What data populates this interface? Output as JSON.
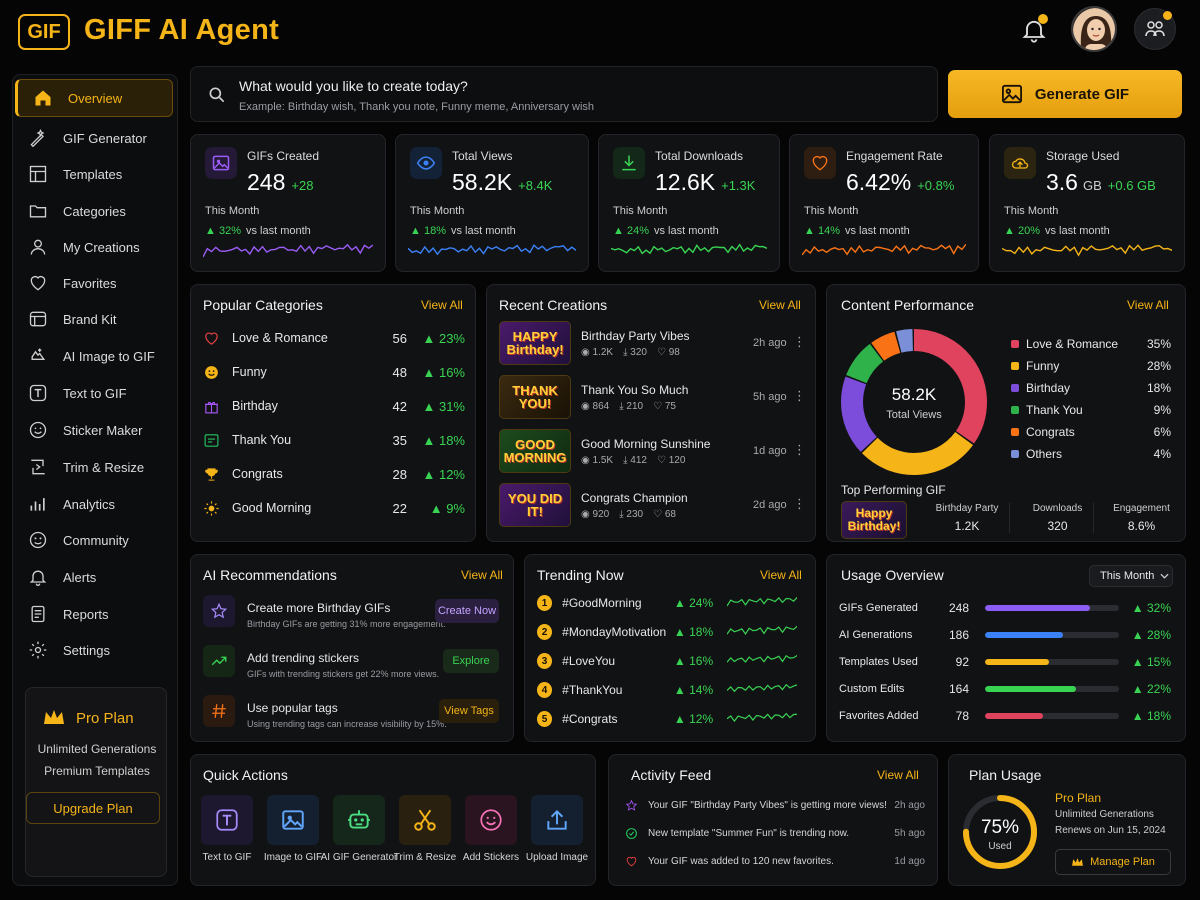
{
  "app": {
    "logo": "GIF",
    "title": "GIFF AI Agent"
  },
  "sidebar": {
    "items": [
      {
        "label": "Overview",
        "icon": "home-icon"
      },
      {
        "label": "GIF Generator",
        "icon": "magic-icon"
      },
      {
        "label": "Templates",
        "icon": "templates-icon"
      },
      {
        "label": "Categories",
        "icon": "folder-icon"
      },
      {
        "label": "My Creations",
        "icon": "user-icon"
      },
      {
        "label": "Favorites",
        "icon": "heart-icon"
      },
      {
        "label": "Brand Kit",
        "icon": "brand-icon"
      },
      {
        "label": "AI Image to GIF",
        "icon": "ai-image-icon"
      },
      {
        "label": "Text to GIF",
        "icon": "text-icon"
      },
      {
        "label": "Sticker Maker",
        "icon": "sticker-icon"
      },
      {
        "label": "Trim & Resize",
        "icon": "trim-icon"
      },
      {
        "label": "Analytics",
        "icon": "analytics-icon"
      },
      {
        "label": "Community",
        "icon": "community-icon"
      },
      {
        "label": "Alerts",
        "icon": "bell-icon"
      },
      {
        "label": "Reports",
        "icon": "reports-icon"
      },
      {
        "label": "Settings",
        "icon": "gear-icon"
      }
    ],
    "plan": {
      "title": "Pro Plan",
      "line1": "Unlimited Generations",
      "line2": "Premium Templates",
      "button": "Upgrade Plan"
    }
  },
  "search": {
    "question": "What would you like to create today?",
    "example": "Example: Birthday wish, Thank you note, Funny meme, Anniversary wish"
  },
  "generate_button": "Generate GIF",
  "stats": [
    {
      "label": "GIFs Created",
      "value": "248",
      "unit": "",
      "change": "+28",
      "period": "This Month",
      "pct": "32%",
      "vs": "vs last month",
      "color": "#9b5cf6"
    },
    {
      "label": "Total Views",
      "value": "58.2K",
      "unit": "",
      "change": "+8.4K",
      "period": "This Month",
      "pct": "18%",
      "vs": "vs last month",
      "color": "#3b82f6"
    },
    {
      "label": "Total Downloads",
      "value": "12.6K",
      "unit": "",
      "change": "+1.3K",
      "period": "This Month",
      "pct": "24%",
      "vs": "vs last month",
      "color": "#39d353"
    },
    {
      "label": "Engagement Rate",
      "value": "6.42%",
      "unit": "",
      "change": "+0.8%",
      "period": "This Month",
      "pct": "14%",
      "vs": "vs last month",
      "color": "#f97316"
    },
    {
      "label": "Storage Used",
      "value": "3.6",
      "unit": "GB",
      "change": "+0.6 GB",
      "period": "This Month",
      "pct": "20%",
      "vs": "vs last month",
      "color": "#f5b418"
    }
  ],
  "popular": {
    "title": "Popular Categories",
    "view_all": "View All",
    "rows": [
      {
        "name": "Love & Romance",
        "count": "56",
        "pct": "23%",
        "icon": "heart-icon",
        "color": "#ef4444"
      },
      {
        "name": "Funny",
        "count": "48",
        "pct": "16%",
        "icon": "smile-icon",
        "color": "#f5b418"
      },
      {
        "name": "Birthday",
        "count": "42",
        "pct": "31%",
        "icon": "gift-icon",
        "color": "#a855f7"
      },
      {
        "name": "Thank You",
        "count": "35",
        "pct": "18%",
        "icon": "card-icon",
        "color": "#22c55e"
      },
      {
        "name": "Congrats",
        "count": "28",
        "pct": "12%",
        "icon": "trophy-icon",
        "color": "#f5b418"
      },
      {
        "name": "Good Morning",
        "count": "22",
        "pct": "9%",
        "icon": "sun-icon",
        "color": "#f5b418"
      }
    ]
  },
  "recent": {
    "title": "Recent Creations",
    "view_all": "View All",
    "rows": [
      {
        "thumb": "HAPPY Birthday!",
        "title": "Birthday Party Vibes",
        "views": "1.2K",
        "downloads": "320",
        "likes": "98",
        "time": "2h ago"
      },
      {
        "thumb": "THANK YOU!",
        "title": "Thank You So Much",
        "views": "864",
        "downloads": "210",
        "likes": "75",
        "time": "5h ago"
      },
      {
        "thumb": "GOOD MORNING",
        "title": "Good Morning Sunshine",
        "views": "1.5K",
        "downloads": "412",
        "likes": "120",
        "time": "1d ago"
      },
      {
        "thumb": "YOU DID IT!",
        "title": "Congrats Champion",
        "views": "920",
        "downloads": "230",
        "likes": "68",
        "time": "2d ago"
      }
    ]
  },
  "performance": {
    "title": "Content Performance",
    "view_all": "View All",
    "center_value": "58.2K",
    "center_label": "Total Views",
    "slices": [
      {
        "name": "Love & Romance",
        "pct": 35,
        "label": "35%",
        "color": "#e0435d"
      },
      {
        "name": "Funny",
        "pct": 28,
        "label": "28%",
        "color": "#f5b418"
      },
      {
        "name": "Birthday",
        "pct": 18,
        "label": "18%",
        "color": "#7c4ddb"
      },
      {
        "name": "Thank You",
        "pct": 9,
        "label": "9%",
        "color": "#2fb24a"
      },
      {
        "name": "Congrats",
        "pct": 6,
        "label": "6%",
        "color": "#f97316"
      },
      {
        "name": "Others",
        "pct": 4,
        "label": "4%",
        "color": "#7b8fd8"
      }
    ],
    "top_title": "Top Performing GIF",
    "top_thumb": "Happy Birthday!",
    "top_cols": [
      {
        "label": "Birthday Party",
        "value": "1.2K"
      },
      {
        "label": "Downloads",
        "value": "320"
      },
      {
        "label": "Engagement",
        "value": "8.6%"
      }
    ]
  },
  "ai_rec": {
    "title": "AI Recommendations",
    "view_all": "View All",
    "rows": [
      {
        "title": "Create more Birthday GIFs",
        "sub": "Birthday GIFs are getting 31% more engagement.",
        "button": "Create Now",
        "icon": "star-icon"
      },
      {
        "title": "Add trending stickers",
        "sub": "GIFs with trending stickers get 22% more views.",
        "button": "Explore",
        "icon": "trend-icon"
      },
      {
        "title": "Use popular tags",
        "sub": "Using trending tags can increase visibility by 15%.",
        "button": "View Tags",
        "icon": "hash-icon"
      }
    ]
  },
  "trending": {
    "title": "Trending Now",
    "view_all": "View All",
    "rows": [
      {
        "n": "1",
        "tag": "#GoodMorning",
        "pct": "24%"
      },
      {
        "n": "2",
        "tag": "#MondayMotivation",
        "pct": "18%"
      },
      {
        "n": "3",
        "tag": "#LoveYou",
        "pct": "16%"
      },
      {
        "n": "4",
        "tag": "#ThankYou",
        "pct": "14%"
      },
      {
        "n": "5",
        "tag": "#Congrats",
        "pct": "12%"
      }
    ]
  },
  "usage": {
    "title": "Usage Overview",
    "period": "This Month",
    "rows": [
      {
        "name": "GIFs Generated",
        "value": "248",
        "fraction": 0.78,
        "pct": "32%",
        "color": "#8b5cf6"
      },
      {
        "name": "AI Generations",
        "value": "186",
        "fraction": 0.58,
        "pct": "28%",
        "color": "#3b82f6"
      },
      {
        "name": "Templates Used",
        "value": "92",
        "fraction": 0.48,
        "pct": "15%",
        "color": "#f5b418"
      },
      {
        "name": "Custom Edits",
        "value": "164",
        "fraction": 0.68,
        "pct": "22%",
        "color": "#39d353"
      },
      {
        "name": "Favorites Added",
        "value": "78",
        "fraction": 0.43,
        "pct": "18%",
        "color": "#e0435d"
      }
    ]
  },
  "quick": {
    "title": "Quick Actions",
    "items": [
      {
        "label": "Text to GIF",
        "icon": "text-icon",
        "color": "#a78bfa",
        "bg": "#1d1830"
      },
      {
        "label": "Image to GIF",
        "icon": "image-icon",
        "color": "#60a5fa",
        "bg": "#14202f"
      },
      {
        "label": "AI GIF Generator",
        "icon": "robot-icon",
        "color": "#4ade80",
        "bg": "#15261a"
      },
      {
        "label": "Trim & Resize",
        "icon": "scissors-icon",
        "color": "#f5b418",
        "bg": "#2a2010"
      },
      {
        "label": "Add Stickers",
        "icon": "sticker-icon",
        "color": "#f472b6",
        "bg": "#2a1420"
      },
      {
        "label": "Upload Image",
        "icon": "upload-icon",
        "color": "#60a5fa",
        "bg": "#14202f"
      }
    ]
  },
  "activity": {
    "title": "Activity Feed",
    "view_all": "View All",
    "rows": [
      {
        "text": "Your GIF \"Birthday Party Vibes\" is getting more views!",
        "time": "2h ago",
        "icon": "star-icon",
        "color": "#a855f7"
      },
      {
        "text": "New template \"Summer Fun\" is trending now.",
        "time": "5h ago",
        "icon": "check-icon",
        "color": "#22c55e"
      },
      {
        "text": "Your GIF was added to 120 new favorites.",
        "time": "1d ago",
        "icon": "heart-icon",
        "color": "#ef4444"
      }
    ]
  },
  "plan_usage": {
    "title": "Plan Usage",
    "percent": "75%",
    "fraction": 0.75,
    "used": "Used",
    "plan": "Pro Plan",
    "line1": "Unlimited Generations",
    "line2": "Renews on Jun 15, 2024",
    "button": "Manage Plan"
  }
}
